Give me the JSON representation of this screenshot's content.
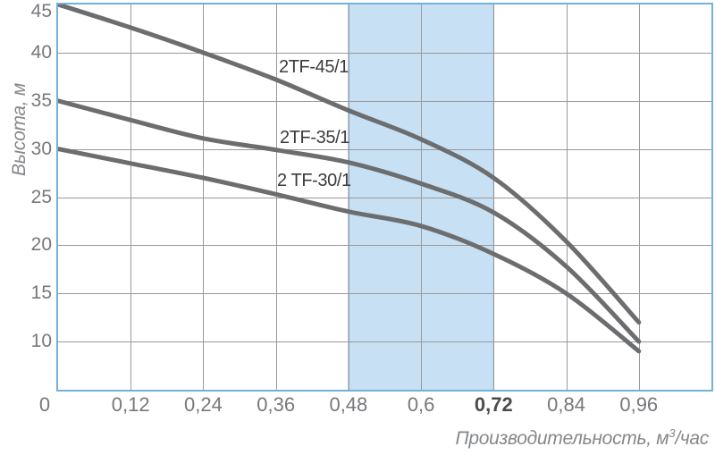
{
  "chart_data": {
    "type": "line",
    "title": "",
    "ylabel": "Высота, м",
    "xlabel": "Производительность, м³/час",
    "xlabel_parts": [
      "Производительность, м",
      "3",
      "/час"
    ],
    "x_range": [
      0,
      1.08
    ],
    "y_range": [
      5,
      45
    ],
    "grid": true,
    "x_ticks": [
      {
        "v": 0,
        "label": "0",
        "dx": -15
      },
      {
        "v": 0.12,
        "label": "0,12"
      },
      {
        "v": 0.24,
        "label": "0,24"
      },
      {
        "v": 0.36,
        "label": "0,36"
      },
      {
        "v": 0.48,
        "label": "0,48"
      },
      {
        "v": 0.6,
        "label": "0,6"
      },
      {
        "v": 0.72,
        "label": "0,72",
        "bold": true
      },
      {
        "v": 0.84,
        "label": "0,84"
      },
      {
        "v": 0.96,
        "label": "0,96"
      }
    ],
    "y_ticks": [
      {
        "v": 45,
        "label": "45"
      },
      {
        "v": 40,
        "label": "40"
      },
      {
        "v": 35,
        "label": "35"
      },
      {
        "v": 30,
        "label": "30"
      },
      {
        "v": 25,
        "label": "25"
      },
      {
        "v": 20,
        "label": "20"
      },
      {
        "v": 15,
        "label": "15"
      },
      {
        "v": 10,
        "label": "10"
      }
    ],
    "highlight_band": {
      "x_from": 0.48,
      "x_to": 0.72
    },
    "series": [
      {
        "name": "2TF-45/1",
        "points": [
          [
            0,
            45
          ],
          [
            0.12,
            42.6
          ],
          [
            0.24,
            40
          ],
          [
            0.36,
            37.2
          ],
          [
            0.48,
            34
          ],
          [
            0.6,
            31
          ],
          [
            0.72,
            27
          ],
          [
            0.84,
            20.4
          ],
          [
            0.96,
            12
          ]
        ]
      },
      {
        "name": "2TF-35/1",
        "points": [
          [
            0,
            35
          ],
          [
            0.12,
            33
          ],
          [
            0.24,
            31.1
          ],
          [
            0.36,
            29.9
          ],
          [
            0.48,
            28.6
          ],
          [
            0.6,
            26.4
          ],
          [
            0.72,
            23.4
          ],
          [
            0.84,
            17.8
          ],
          [
            0.96,
            10
          ]
        ]
      },
      {
        "name": "2 TF-30/1",
        "points": [
          [
            0,
            30
          ],
          [
            0.12,
            28.5
          ],
          [
            0.24,
            27
          ],
          [
            0.36,
            25.3
          ],
          [
            0.48,
            23.5
          ],
          [
            0.6,
            22
          ],
          [
            0.72,
            19.1
          ],
          [
            0.84,
            15
          ],
          [
            0.96,
            9
          ]
        ]
      }
    ],
    "annotations": [
      {
        "text": "2TF-45/1",
        "px": [
          312,
          63
        ]
      },
      {
        "text": "2TF-35/1",
        "px": [
          313,
          142
        ]
      },
      {
        "text": "2 TF-30/1",
        "px": [
          310,
          190
        ]
      }
    ],
    "colors": {
      "plot_border": "#72B1D8",
      "band_fill": "#C7E0F3",
      "band_edge": "#A7C9E4",
      "gridline": "#98999B",
      "curve": "#6C6D6F",
      "tick_label": "#76787B",
      "bold_tick_label": "#4B4C4E",
      "curve_label": "#3B3C3E",
      "axis_title": "#85878A",
      "background": "#FFFFFF"
    }
  }
}
